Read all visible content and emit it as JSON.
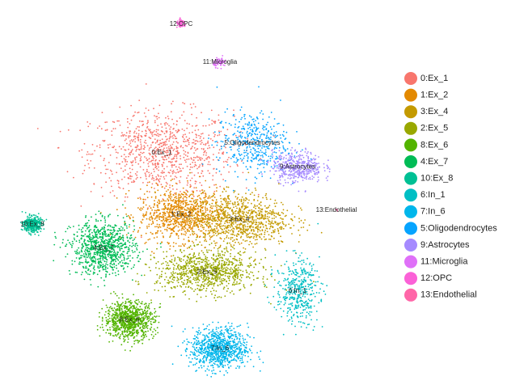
{
  "chart_data": {
    "type": "scatter",
    "title": "",
    "xlabel": "",
    "ylabel": "",
    "grid": false,
    "axes": false,
    "legend_position": "right",
    "clusters": [
      {
        "name": "0:Ex_1",
        "label": "0:Ex_1",
        "color": "#F8766D",
        "center": [
          -6,
          18
        ],
        "spread": [
          10,
          8
        ],
        "density": "high"
      },
      {
        "name": "1:Ex_2",
        "label": "1:Ex_2",
        "color": "#E38900",
        "center": [
          -3,
          5
        ],
        "spread": [
          6,
          5
        ],
        "density": "high"
      },
      {
        "name": "3:Ex_4",
        "label": "3:Ex_4",
        "color": "#C49A00",
        "center": [
          6,
          4
        ],
        "spread": [
          7,
          5
        ],
        "density": "high"
      },
      {
        "name": "2:Ex_5",
        "label": "2:Ex_5",
        "color": "#99A800",
        "center": [
          1,
          -7
        ],
        "spread": [
          7,
          4
        ],
        "density": "high"
      },
      {
        "name": "8:Ex_6",
        "label": "8:Ex_6",
        "color": "#53B400",
        "center": [
          -11,
          -17
        ],
        "spread": [
          3.5,
          3.5
        ],
        "density": "high"
      },
      {
        "name": "4:Ex_7",
        "label": "4:Ex_7",
        "color": "#00BC56",
        "center": [
          -15,
          -2
        ],
        "spread": [
          4.5,
          5
        ],
        "density": "high"
      },
      {
        "name": "10:Ex_8",
        "label": "10:Ex_8",
        "color": "#00C094",
        "center": [
          -26,
          3
        ],
        "spread": [
          1.2,
          1.5
        ],
        "density": "medium"
      },
      {
        "name": "6:In_1",
        "label": "6:In_1",
        "color": "#00BFC4",
        "center": [
          15,
          -11
        ],
        "spread": [
          3,
          6
        ],
        "density": "medium"
      },
      {
        "name": "7:In_6",
        "label": "7:In_6",
        "color": "#00B6EB",
        "center": [
          3,
          -23
        ],
        "spread": [
          4,
          4
        ],
        "density": "high"
      },
      {
        "name": "5:Oligodendrocytes",
        "label": "5:Oligodendrocytes",
        "color": "#06A4FF",
        "center": [
          8,
          20
        ],
        "spread": [
          5,
          6
        ],
        "density": "medium"
      },
      {
        "name": "9:Astrocytes",
        "label": "9:Astrocytes",
        "color": "#A58AFF",
        "center": [
          15,
          15
        ],
        "spread": [
          3.5,
          3
        ],
        "density": "medium"
      },
      {
        "name": "11:Microglia",
        "label": "11:Microglia",
        "color": "#DF70F8",
        "center": [
          3,
          37
        ],
        "spread": [
          0.9,
          0.9
        ],
        "density": "low"
      },
      {
        "name": "12:OPC",
        "label": "12:OPC",
        "color": "#FB61D7",
        "center": [
          -3,
          45
        ],
        "spread": [
          0.7,
          0.7
        ],
        "density": "low"
      },
      {
        "name": "13:Endothelial",
        "label": "13:Endothelial",
        "color": "#FF66A8",
        "center": [
          21,
          6
        ],
        "spread": [
          0.3,
          0.2
        ],
        "density": "tiny"
      }
    ],
    "legend": [
      {
        "label": "0:Ex_1",
        "color": "#F8766D"
      },
      {
        "label": "1:Ex_2",
        "color": "#E38900"
      },
      {
        "label": "3:Ex_4",
        "color": "#C49A00"
      },
      {
        "label": "2:Ex_5",
        "color": "#99A800"
      },
      {
        "label": "8:Ex_6",
        "color": "#53B400"
      },
      {
        "label": "4:Ex_7",
        "color": "#00BC56"
      },
      {
        "label": "10:Ex_8",
        "color": "#00C094"
      },
      {
        "label": "6:In_1",
        "color": "#00BFC4"
      },
      {
        "label": "7:In_6",
        "color": "#00B6EB"
      },
      {
        "label": "5:Oligodendrocytes",
        "color": "#06A4FF"
      },
      {
        "label": "9:Astrocytes",
        "color": "#A58AFF"
      },
      {
        "label": "11:Microglia",
        "color": "#DF70F8"
      },
      {
        "label": "12:OPC",
        "color": "#FB61D7"
      },
      {
        "label": "13:Endothelial",
        "color": "#FF66A8"
      }
    ]
  }
}
